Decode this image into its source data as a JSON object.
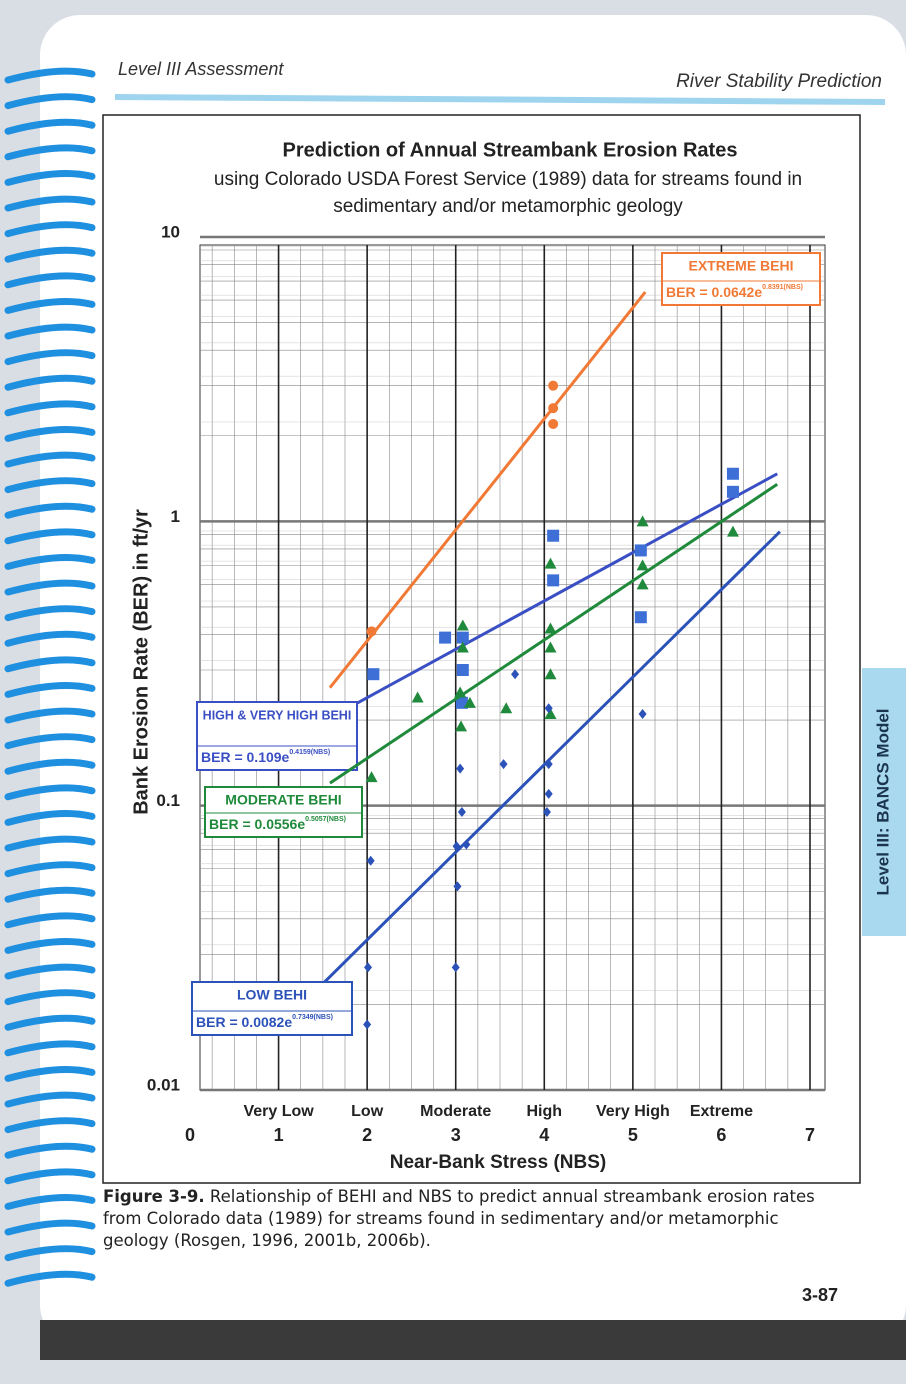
{
  "header": {
    "left": "Level III Assessment",
    "right": "River Stability Prediction"
  },
  "side_tab": "Level III: BANCS Model",
  "chart_data": {
    "type": "scatter",
    "title": "Prediction of Annual Streambank Erosion Rates",
    "subtitle_lines": [
      "using Colorado USDA Forest Service (1989) data for streams found in",
      "sedimentary and/or metamorphic geology"
    ],
    "x_label": "Near-Bank Stress (NBS)",
    "y_label": "Bank Erosion Rate (BER) in ft/yr",
    "xlim": [
      0,
      7
    ],
    "xticks": [
      0,
      1,
      2,
      3,
      4,
      5,
      6,
      7
    ],
    "x_categories": [
      null,
      "Very Low",
      "Low",
      "Moderate",
      "High",
      "Very High",
      "Extreme",
      null
    ],
    "ylim": [
      0.01,
      10
    ],
    "yticks": [
      0.01,
      0.1,
      1,
      10
    ],
    "y_scale": "log",
    "grid": true,
    "minor_grid": true,
    "series": [
      {
        "name": "EXTREME BEHI",
        "color": "#f07a35",
        "marker": "circle",
        "equation": "BER = 0.0642e",
        "exponent": "0.8391(NBS)",
        "x": [
          2.05,
          4.1,
          4.1,
          4.1
        ],
        "values": [
          0.41,
          3.0,
          2.5,
          2.2
        ],
        "fit_x": [
          1.58,
          5.14
        ],
        "fit_y": [
          0.26,
          6.4
        ]
      },
      {
        "name": "HIGH & VERY HIGH BEHI",
        "color": "#3d6fd6",
        "line_color": "#3b4fc4",
        "marker": "square",
        "equation": "BER = 0.109e",
        "exponent": "0.4159(NBS)",
        "x": [
          2.07,
          2.88,
          3.08,
          3.08,
          3.07,
          4.1,
          4.1,
          5.09,
          5.09,
          6.13,
          6.13
        ],
        "values": [
          0.29,
          0.39,
          0.39,
          0.3,
          0.23,
          0.89,
          0.62,
          0.79,
          0.46,
          1.47,
          1.27
        ],
        "fit_x": [
          1.78,
          6.63
        ],
        "fit_y": [
          0.22,
          1.47
        ]
      },
      {
        "name": "MODERATE BEHI",
        "color": "#1f8a3b",
        "marker": "triangle",
        "equation": "BER = 0.0556e",
        "exponent": "0.5057(NBS)",
        "x": [
          2.05,
          2.57,
          3.05,
          3.08,
          3.08,
          3.06,
          3.16,
          3.57,
          4.07,
          4.07,
          4.07,
          4.07,
          4.07,
          5.11,
          5.11,
          5.11,
          6.13
        ],
        "values": [
          0.126,
          0.24,
          0.25,
          0.43,
          0.36,
          0.19,
          0.23,
          0.22,
          0.42,
          0.36,
          0.29,
          0.21,
          0.71,
          1.0,
          0.7,
          0.6,
          0.92
        ],
        "fit_x": [
          1.58,
          6.63
        ],
        "fit_y": [
          0.12,
          1.35
        ]
      },
      {
        "name": "LOW BEHI",
        "color": "#2b52b8",
        "marker": "diamond",
        "equation": "BER = 0.0082e",
        "exponent": "0.7349(NBS)",
        "x": [
          2.04,
          2.01,
          2.0,
          3.05,
          3.07,
          3.01,
          3.12,
          3.02,
          3.0,
          3.54,
          3.67,
          4.05,
          4.05,
          4.05,
          4.03,
          5.11
        ],
        "values": [
          0.064,
          0.027,
          0.017,
          0.135,
          0.095,
          0.072,
          0.073,
          0.052,
          0.027,
          0.14,
          0.29,
          0.22,
          0.14,
          0.11,
          0.095,
          0.21
        ],
        "fit_x": [
          1.52,
          6.66
        ],
        "fit_y": [
          0.024,
          0.92
        ]
      }
    ]
  },
  "caption": {
    "label": "Figure 3-9.",
    "text": "Relationship of BEHI and NBS to predict annual streambank erosion rates from Colorado data (1989) for streams found in sedimentary and/or metamorphic geology (Rosgen, 1996, 2001b, 2006b)."
  },
  "page_number": "3-87"
}
